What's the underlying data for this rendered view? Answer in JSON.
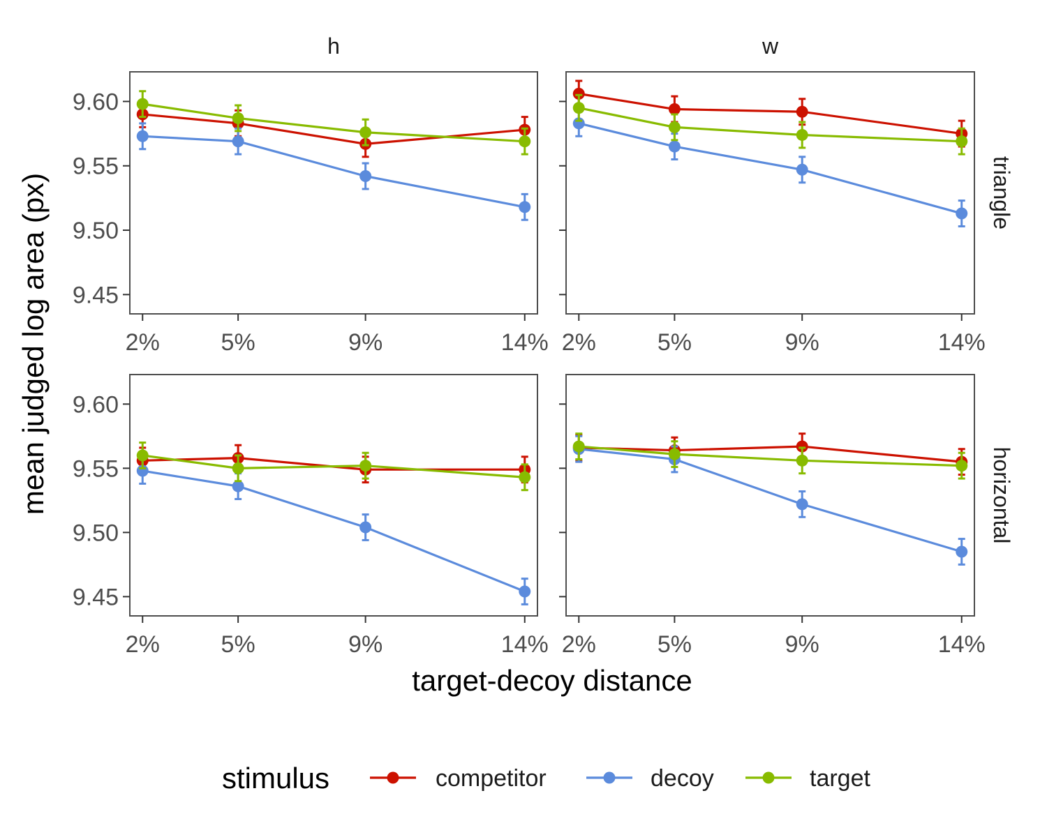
{
  "chart_data": {
    "type": "line",
    "facet_columns": [
      "h",
      "w"
    ],
    "facet_rows": [
      "triangle",
      "horizontal"
    ],
    "x_categories": [
      "2%",
      "5%",
      "9%",
      "14%"
    ],
    "x_values": [
      2,
      5,
      9,
      14
    ],
    "xlabel": "target-decoy distance",
    "ylabel": "mean judged log area (px)",
    "ylim": [
      9.435,
      9.623
    ],
    "y_ticks": [
      9.45,
      9.5,
      9.55,
      9.6
    ],
    "y_tick_labels": [
      "9.45",
      "9.50",
      "9.55",
      "9.60"
    ],
    "grid": false,
    "legend": {
      "title": "stimulus",
      "placement": "bottom",
      "items": [
        "competitor",
        "decoy",
        "target"
      ]
    },
    "series_colors": {
      "competitor": "#cc1100",
      "decoy": "#5b8bdc",
      "target": "#88bb00"
    },
    "panels": [
      {
        "row": "triangle",
        "col": "h",
        "series": [
          {
            "name": "competitor",
            "values": [
              9.59,
              9.583,
              9.567,
              9.578
            ],
            "err": [
              0.01,
              0.01,
              0.01,
              0.01
            ]
          },
          {
            "name": "decoy",
            "values": [
              9.573,
              9.569,
              9.542,
              9.518
            ],
            "err": [
              0.01,
              0.01,
              0.01,
              0.01
            ]
          },
          {
            "name": "target",
            "values": [
              9.598,
              9.587,
              9.576,
              9.569
            ],
            "err": [
              0.01,
              0.01,
              0.01,
              0.01
            ]
          }
        ]
      },
      {
        "row": "triangle",
        "col": "w",
        "series": [
          {
            "name": "competitor",
            "values": [
              9.606,
              9.594,
              9.592,
              9.575
            ],
            "err": [
              0.01,
              0.01,
              0.01,
              0.01
            ]
          },
          {
            "name": "decoy",
            "values": [
              9.583,
              9.565,
              9.547,
              9.513
            ],
            "err": [
              0.01,
              0.01,
              0.01,
              0.01
            ]
          },
          {
            "name": "target",
            "values": [
              9.595,
              9.58,
              9.574,
              9.569
            ],
            "err": [
              0.01,
              0.01,
              0.01,
              0.01
            ]
          }
        ]
      },
      {
        "row": "horizontal",
        "col": "h",
        "series": [
          {
            "name": "competitor",
            "values": [
              9.556,
              9.558,
              9.549,
              9.549
            ],
            "err": [
              0.01,
              0.01,
              0.01,
              0.01
            ]
          },
          {
            "name": "decoy",
            "values": [
              9.548,
              9.536,
              9.504,
              9.454
            ],
            "err": [
              0.01,
              0.01,
              0.01,
              0.01
            ]
          },
          {
            "name": "target",
            "values": [
              9.56,
              9.55,
              9.552,
              9.543
            ],
            "err": [
              0.01,
              0.01,
              0.01,
              0.01
            ]
          }
        ]
      },
      {
        "row": "horizontal",
        "col": "w",
        "series": [
          {
            "name": "competitor",
            "values": [
              9.566,
              9.564,
              9.567,
              9.555
            ],
            "err": [
              0.01,
              0.01,
              0.01,
              0.01
            ]
          },
          {
            "name": "decoy",
            "values": [
              9.565,
              9.557,
              9.522,
              9.485
            ],
            "err": [
              0.01,
              0.01,
              0.01,
              0.01
            ]
          },
          {
            "name": "target",
            "values": [
              9.567,
              9.561,
              9.556,
              9.552
            ],
            "err": [
              0.01,
              0.01,
              0.01,
              0.01
            ]
          }
        ]
      }
    ]
  }
}
